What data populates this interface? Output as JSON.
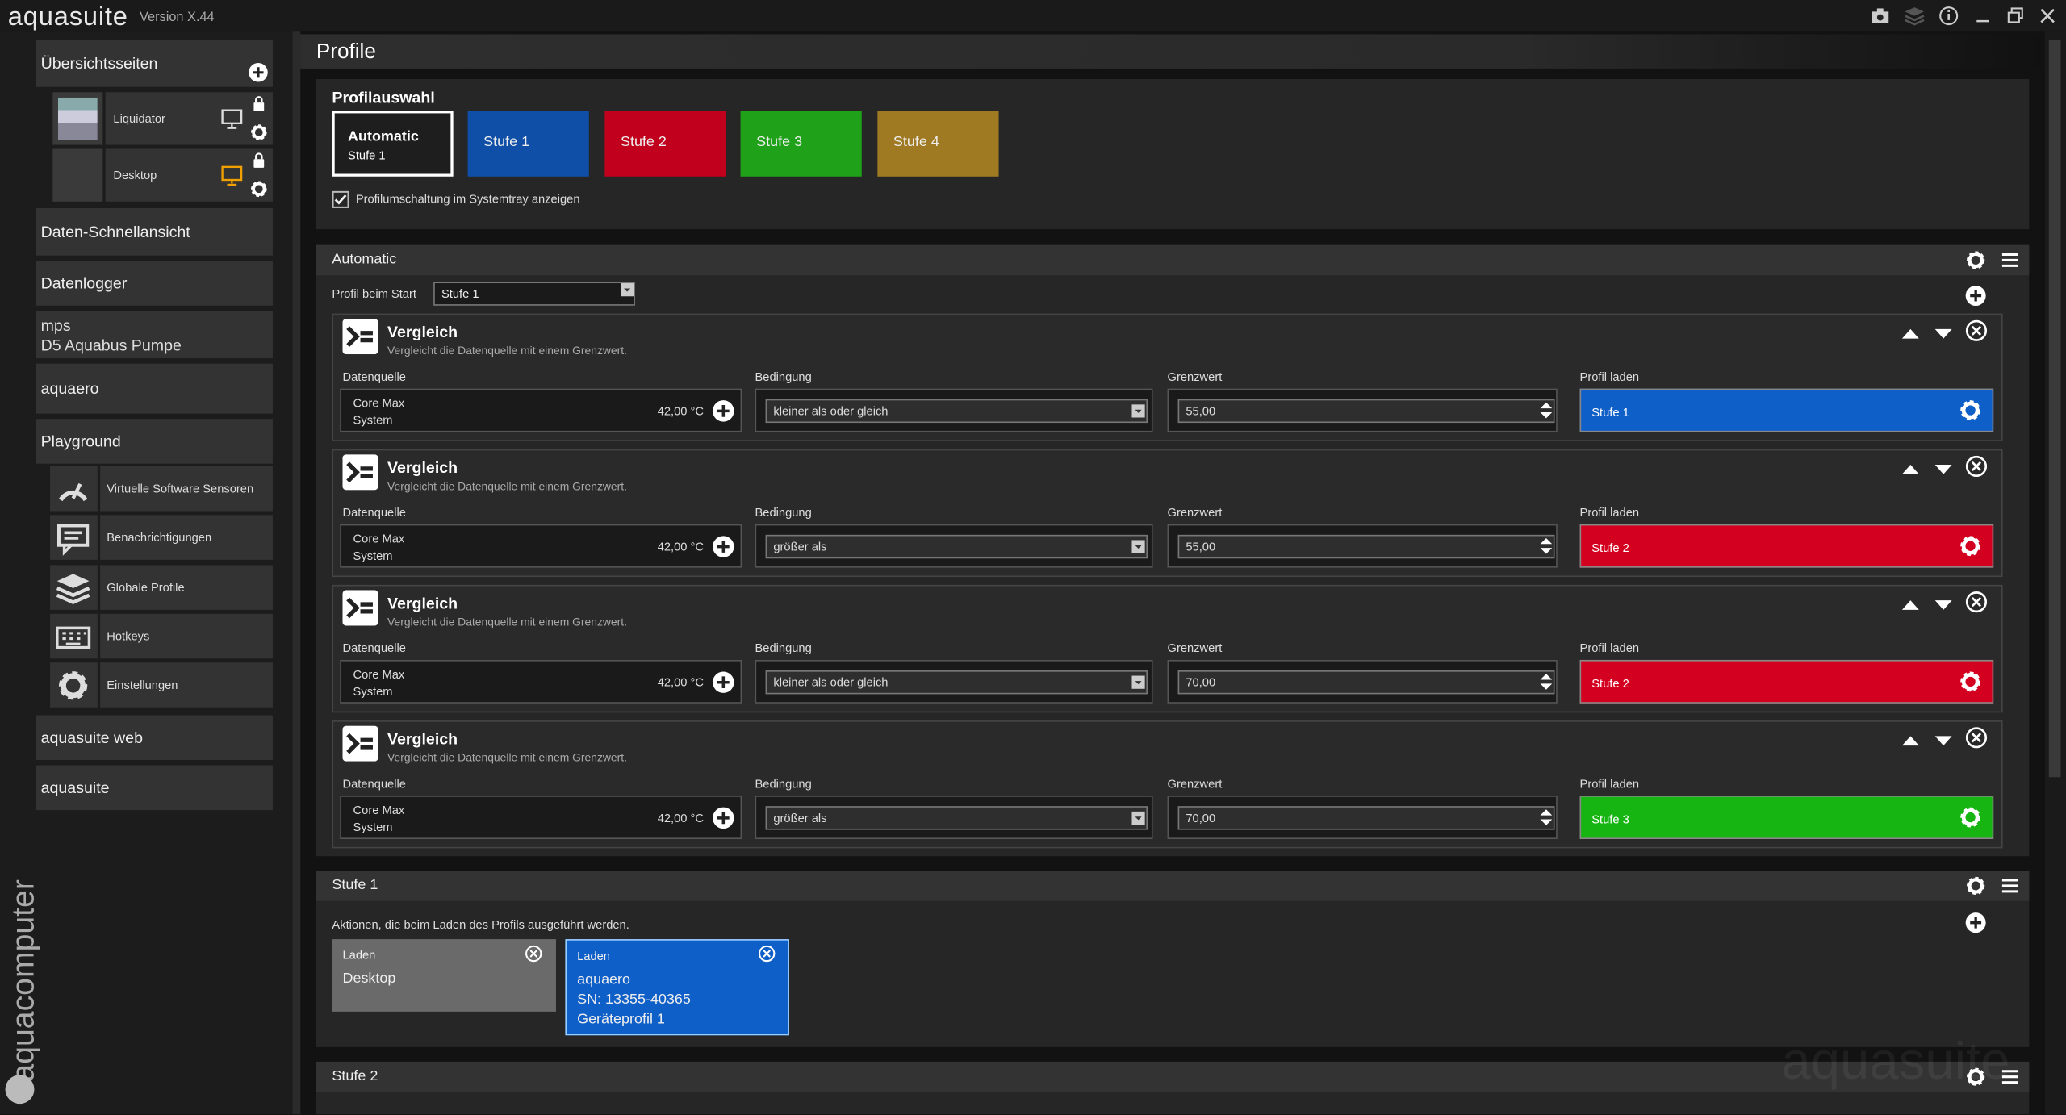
{
  "app": {
    "name": "aquasuite",
    "version": "Version X.44"
  },
  "sidebar": {
    "overview": {
      "title": "Übersichtsseiten",
      "pages": [
        "Liquidator",
        "Desktop"
      ]
    },
    "sections": [
      "Daten-Schnellansicht",
      "Datenlogger"
    ],
    "device": {
      "line1": "mps",
      "line2": "D5 Aquabus Pumpe"
    },
    "aquaero": "aquaero",
    "playground": {
      "title": "Playground",
      "items": [
        "Virtuelle Software Sensoren",
        "Benachrichtigungen",
        "Globale Profile",
        "Hotkeys",
        "Einstellungen"
      ]
    },
    "bottom": [
      "aquasuite web",
      "aquasuite"
    ],
    "brand": "aquacomputer"
  },
  "page": {
    "title": "Profile"
  },
  "profile_selection": {
    "title": "Profilauswahl",
    "buttons": [
      {
        "label": "Automatic",
        "sub": "Stufe 1",
        "color": "#1e1e1e"
      },
      {
        "label": "Stufe 1",
        "color": "#0f4fa8"
      },
      {
        "label": "Stufe 2",
        "color": "#c0001c"
      },
      {
        "label": "Stufe 3",
        "color": "#1fa11a"
      },
      {
        "label": "Stufe 4",
        "color": "#a07a22"
      }
    ],
    "checkbox": "Profilumschaltung im Systemtray anzeigen"
  },
  "automatic": {
    "title": "Automatic",
    "start_label": "Profil beim Start",
    "start_value": "Stufe 1",
    "columns": {
      "source": "Datenquelle",
      "condition": "Bedingung",
      "limit": "Grenzwert",
      "profile": "Profil laden"
    },
    "rules": [
      {
        "title": "Vergleich",
        "description": "Vergleicht die Datenquelle mit einem Grenzwert.",
        "source": "Core Max",
        "source_sub": "System",
        "source_value": "42,00 °C",
        "condition": "kleiner als oder gleich",
        "limit": "55,00",
        "profile": "Stufe 1",
        "color": "#0f5fc8"
      },
      {
        "title": "Vergleich",
        "description": "Vergleicht die Datenquelle mit einem Grenzwert.",
        "source": "Core Max",
        "source_sub": "System",
        "source_value": "42,00 °C",
        "condition": "größer als",
        "limit": "55,00",
        "profile": "Stufe 2",
        "color": "#d40020"
      },
      {
        "title": "Vergleich",
        "description": "Vergleicht die Datenquelle mit einem Grenzwert.",
        "source": "Core Max",
        "source_sub": "System",
        "source_value": "42,00 °C",
        "condition": "kleiner als oder gleich",
        "limit": "70,00",
        "profile": "Stufe 2",
        "color": "#d40020"
      },
      {
        "title": "Vergleich",
        "description": "Vergleicht die Datenquelle mit einem Grenzwert.",
        "source": "Core Max",
        "source_sub": "System",
        "source_value": "42,00 °C",
        "condition": "größer als",
        "limit": "70,00",
        "profile": "Stufe 3",
        "color": "#16b512"
      }
    ]
  },
  "stufe1": {
    "title": "Stufe 1",
    "description": "Aktionen, die beim Laden des Profils ausgeführt werden.",
    "actions": [
      {
        "label": "Laden",
        "lines": [
          "Desktop"
        ],
        "color": "#6a6a6a"
      },
      {
        "label": "Laden",
        "lines": [
          "aquaero",
          "SN: 13355-40365",
          "Geräteprofil 1"
        ],
        "color": "#0f5fc8"
      }
    ]
  },
  "stufe2": {
    "title": "Stufe 2"
  },
  "watermark": "aquasuite"
}
